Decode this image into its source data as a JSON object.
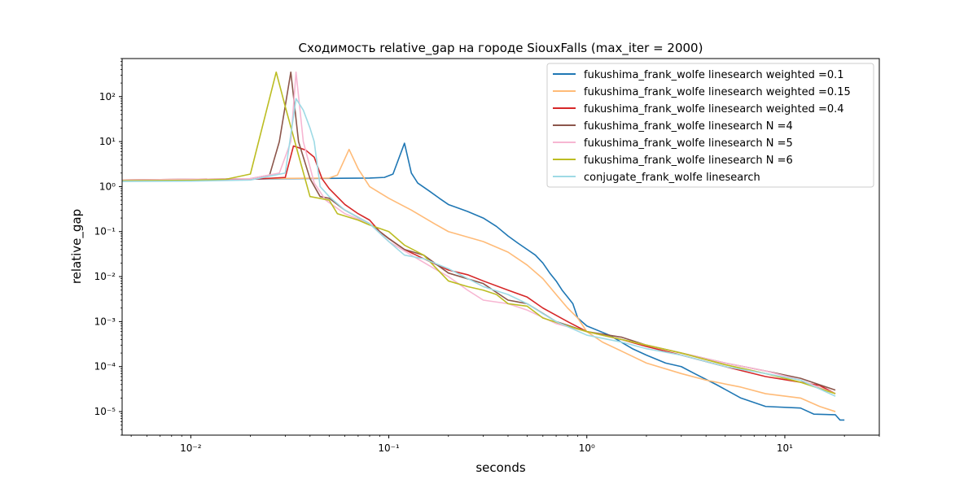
{
  "chart_data": {
    "type": "line",
    "title": "Сходимость relative_gap на городе SiouxFalls  (max_iter = 2000)",
    "xlabel": "seconds",
    "ylabel": "relative_gap",
    "xscale": "log",
    "yscale": "log",
    "xlim": [
      0.0045,
      30
    ],
    "ylim": [
      3e-06,
      700
    ],
    "grid": false,
    "legend_position": "top-right",
    "x_ticks": [
      {
        "value": 0.01,
        "label": "10⁻²"
      },
      {
        "value": 0.1,
        "label": "10⁻¹"
      },
      {
        "value": 1,
        "label": "10⁰"
      },
      {
        "value": 10,
        "label": "10¹"
      }
    ],
    "y_ticks": [
      {
        "value": 1e-05,
        "label": "10⁻⁵"
      },
      {
        "value": 0.0001,
        "label": "10⁻⁴"
      },
      {
        "value": 0.001,
        "label": "10⁻³"
      },
      {
        "value": 0.01,
        "label": "10⁻²"
      },
      {
        "value": 0.1,
        "label": "10⁻¹"
      },
      {
        "value": 1,
        "label": "10⁰"
      },
      {
        "value": 10,
        "label": "10¹"
      },
      {
        "value": 100,
        "label": "10²"
      }
    ],
    "series": [
      {
        "name": "fukushima_frank_wolfe linesearch weighted =0.1",
        "color": "#1f77b4",
        "points": [
          [
            0.0045,
            1.4
          ],
          [
            0.01,
            1.42
          ],
          [
            0.03,
            1.5
          ],
          [
            0.08,
            1.55
          ],
          [
            0.095,
            1.6
          ],
          [
            0.105,
            1.9
          ],
          [
            0.12,
            9.2
          ],
          [
            0.13,
            2.0
          ],
          [
            0.14,
            1.2
          ],
          [
            0.16,
            0.8
          ],
          [
            0.18,
            0.55
          ],
          [
            0.2,
            0.4
          ],
          [
            0.25,
            0.28
          ],
          [
            0.3,
            0.2
          ],
          [
            0.35,
            0.13
          ],
          [
            0.4,
            0.08
          ],
          [
            0.45,
            0.055
          ],
          [
            0.5,
            0.04
          ],
          [
            0.55,
            0.03
          ],
          [
            0.6,
            0.02
          ],
          [
            0.65,
            0.012
          ],
          [
            0.7,
            0.008
          ],
          [
            0.75,
            0.005
          ],
          [
            0.8,
            0.0035
          ],
          [
            0.85,
            0.0025
          ],
          [
            0.9,
            0.0012
          ],
          [
            1.0,
            0.0008
          ],
          [
            1.3,
            0.0005
          ],
          [
            1.7,
            0.00025
          ],
          [
            2.0,
            0.00018
          ],
          [
            2.5,
            0.00012
          ],
          [
            3.0,
            0.0001
          ],
          [
            3.5,
            7e-05
          ],
          [
            4.5,
            4e-05
          ],
          [
            6.0,
            2e-05
          ],
          [
            8.0,
            1.3e-05
          ],
          [
            12.0,
            1.2e-05
          ],
          [
            14.0,
            8.8e-06
          ],
          [
            18.0,
            8.5e-06
          ],
          [
            19.0,
            6.5e-06
          ],
          [
            20.0,
            6.5e-06
          ]
        ]
      },
      {
        "name": "fukushima_frank_wolfe linesearch weighted =0.15",
        "color": "#ffbb78",
        "points": [
          [
            0.0045,
            1.4
          ],
          [
            0.02,
            1.5
          ],
          [
            0.05,
            1.55
          ],
          [
            0.055,
            1.8
          ],
          [
            0.063,
            6.7
          ],
          [
            0.07,
            2.5
          ],
          [
            0.08,
            1.0
          ],
          [
            0.1,
            0.55
          ],
          [
            0.13,
            0.3
          ],
          [
            0.17,
            0.15
          ],
          [
            0.2,
            0.1
          ],
          [
            0.3,
            0.06
          ],
          [
            0.4,
            0.035
          ],
          [
            0.5,
            0.018
          ],
          [
            0.6,
            0.009
          ],
          [
            0.7,
            0.004
          ],
          [
            0.8,
            0.002
          ],
          [
            0.9,
            0.0012
          ],
          [
            1.0,
            0.0006
          ],
          [
            1.2,
            0.00035
          ],
          [
            1.5,
            0.00022
          ],
          [
            2.0,
            0.00012
          ],
          [
            3.0,
            7e-05
          ],
          [
            4.0,
            5e-05
          ],
          [
            6.0,
            3.5e-05
          ],
          [
            8.0,
            2.5e-05
          ],
          [
            12.0,
            2e-05
          ],
          [
            15.0,
            1.3e-05
          ],
          [
            18.0,
            1e-05
          ]
        ]
      },
      {
        "name": "fukushima_frank_wolfe linesearch weighted =0.4",
        "color": "#d62728",
        "points": [
          [
            0.0045,
            1.4
          ],
          [
            0.02,
            1.45
          ],
          [
            0.03,
            1.6
          ],
          [
            0.033,
            8.0
          ],
          [
            0.038,
            6.5
          ],
          [
            0.042,
            4.5
          ],
          [
            0.046,
            1.5
          ],
          [
            0.05,
            0.9
          ],
          [
            0.06,
            0.4
          ],
          [
            0.07,
            0.25
          ],
          [
            0.08,
            0.18
          ],
          [
            0.09,
            0.1
          ],
          [
            0.1,
            0.07
          ],
          [
            0.12,
            0.04
          ],
          [
            0.15,
            0.025
          ],
          [
            0.2,
            0.014
          ],
          [
            0.25,
            0.011
          ],
          [
            0.3,
            0.008
          ],
          [
            0.4,
            0.005
          ],
          [
            0.5,
            0.0035
          ],
          [
            0.6,
            0.002
          ],
          [
            0.8,
            0.001
          ],
          [
            1.0,
            0.0006
          ],
          [
            1.5,
            0.0004
          ],
          [
            2.0,
            0.00028
          ],
          [
            3.0,
            0.00018
          ],
          [
            5.0,
            0.0001
          ],
          [
            8.0,
            6e-05
          ],
          [
            12.0,
            4.5e-05
          ],
          [
            15.0,
            3.8e-05
          ],
          [
            18.0,
            2.5e-05
          ]
        ]
      },
      {
        "name": "fukushima_frank_wolfe linesearch N =4",
        "color": "#8c564b",
        "points": [
          [
            0.0045,
            1.4
          ],
          [
            0.02,
            1.5
          ],
          [
            0.025,
            1.8
          ],
          [
            0.028,
            10.0
          ],
          [
            0.032,
            350
          ],
          [
            0.035,
            10.0
          ],
          [
            0.04,
            1.5
          ],
          [
            0.045,
            0.6
          ],
          [
            0.05,
            0.55
          ],
          [
            0.06,
            0.3
          ],
          [
            0.08,
            0.15
          ],
          [
            0.1,
            0.07
          ],
          [
            0.12,
            0.04
          ],
          [
            0.15,
            0.03
          ],
          [
            0.2,
            0.012
          ],
          [
            0.3,
            0.007
          ],
          [
            0.4,
            0.003
          ],
          [
            0.5,
            0.0025
          ],
          [
            0.7,
            0.001
          ],
          [
            1.0,
            0.0006
          ],
          [
            1.5,
            0.00045
          ],
          [
            2.0,
            0.0003
          ],
          [
            3.0,
            0.0002
          ],
          [
            5.0,
            0.00012
          ],
          [
            8.0,
            8e-05
          ],
          [
            12.0,
            5.5e-05
          ],
          [
            18.0,
            3e-05
          ]
        ]
      },
      {
        "name": "fukushima_frank_wolfe linesearch N =5",
        "color": "#f7b6d2",
        "points": [
          [
            0.0045,
            1.4
          ],
          [
            0.02,
            1.5
          ],
          [
            0.028,
            2.0
          ],
          [
            0.032,
            10.0
          ],
          [
            0.034,
            350
          ],
          [
            0.037,
            10.0
          ],
          [
            0.042,
            1.2
          ],
          [
            0.048,
            0.5
          ],
          [
            0.06,
            0.25
          ],
          [
            0.08,
            0.15
          ],
          [
            0.1,
            0.06
          ],
          [
            0.13,
            0.03
          ],
          [
            0.17,
            0.015
          ],
          [
            0.2,
            0.01
          ],
          [
            0.25,
            0.005
          ],
          [
            0.3,
            0.003
          ],
          [
            0.4,
            0.0025
          ],
          [
            0.5,
            0.0018
          ],
          [
            0.7,
            0.0009
          ],
          [
            1.0,
            0.0006
          ],
          [
            1.5,
            0.0004
          ],
          [
            2.0,
            0.0003
          ],
          [
            3.0,
            0.0002
          ],
          [
            5.0,
            0.00012
          ],
          [
            8.0,
            8e-05
          ],
          [
            12.0,
            5e-05
          ],
          [
            18.0,
            2.5e-05
          ]
        ]
      },
      {
        "name": "fukushima_frank_wolfe linesearch N =6",
        "color": "#bcbd22",
        "points": [
          [
            0.0045,
            1.35
          ],
          [
            0.01,
            1.38
          ],
          [
            0.015,
            1.45
          ],
          [
            0.02,
            1.9
          ],
          [
            0.027,
            350
          ],
          [
            0.03,
            60.0
          ],
          [
            0.035,
            5.0
          ],
          [
            0.04,
            0.6
          ],
          [
            0.05,
            0.5
          ],
          [
            0.055,
            0.25
          ],
          [
            0.07,
            0.18
          ],
          [
            0.08,
            0.14
          ],
          [
            0.1,
            0.1
          ],
          [
            0.12,
            0.05
          ],
          [
            0.15,
            0.03
          ],
          [
            0.2,
            0.008
          ],
          [
            0.25,
            0.006
          ],
          [
            0.3,
            0.005
          ],
          [
            0.35,
            0.004
          ],
          [
            0.4,
            0.0025
          ],
          [
            0.5,
            0.0022
          ],
          [
            0.6,
            0.0012
          ],
          [
            0.8,
            0.0008
          ],
          [
            1.0,
            0.0006
          ],
          [
            1.5,
            0.0004
          ],
          [
            2.0,
            0.0003
          ],
          [
            3.0,
            0.0002
          ],
          [
            5.0,
            0.00011
          ],
          [
            8.0,
            7e-05
          ],
          [
            12.0,
            4.5e-05
          ],
          [
            18.0,
            2.5e-05
          ]
        ]
      },
      {
        "name": "conjugate_frank_wolfe linesearch",
        "color": "#9edae5",
        "points": [
          [
            0.0045,
            1.3
          ],
          [
            0.01,
            1.32
          ],
          [
            0.02,
            1.4
          ],
          [
            0.03,
            2.0
          ],
          [
            0.034,
            90.0
          ],
          [
            0.037,
            50.0
          ],
          [
            0.04,
            20.0
          ],
          [
            0.042,
            10.0
          ],
          [
            0.045,
            1.0
          ],
          [
            0.05,
            0.6
          ],
          [
            0.06,
            0.3
          ],
          [
            0.08,
            0.15
          ],
          [
            0.1,
            0.06
          ],
          [
            0.12,
            0.03
          ],
          [
            0.15,
            0.025
          ],
          [
            0.2,
            0.015
          ],
          [
            0.3,
            0.006
          ],
          [
            0.4,
            0.004
          ],
          [
            0.5,
            0.0025
          ],
          [
            0.6,
            0.0015
          ],
          [
            0.7,
            0.001
          ],
          [
            1.0,
            0.0005
          ],
          [
            1.5,
            0.00035
          ],
          [
            2.0,
            0.00025
          ],
          [
            3.0,
            0.00018
          ],
          [
            5.0,
            0.0001
          ],
          [
            8.0,
            7e-05
          ],
          [
            12.0,
            5e-05
          ],
          [
            18.0,
            2.2e-05
          ]
        ]
      }
    ]
  }
}
